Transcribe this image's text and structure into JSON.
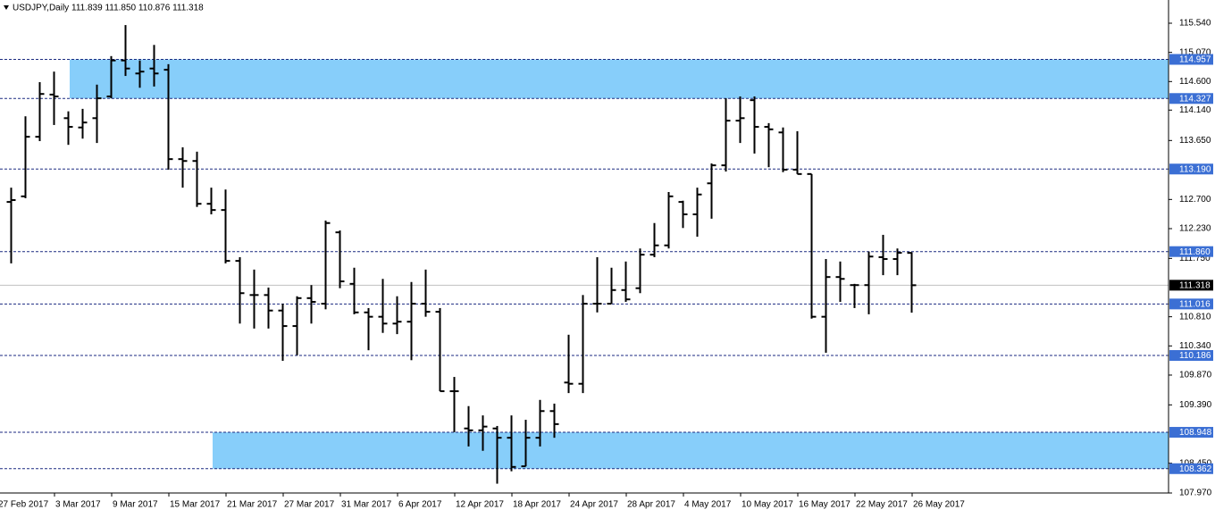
{
  "chart_data": {
    "type": "ohlc",
    "title": "USDJPY,Daily",
    "subtitle": "111.839 111.850 110.876 111.318",
    "categories": [
      "27 Feb 2017",
      null,
      null,
      null,
      "3 Mar 2017",
      null,
      null,
      null,
      "9 Mar 2017",
      null,
      null,
      null,
      "15 Mar 2017",
      null,
      null,
      null,
      "21 Mar 2017",
      null,
      null,
      null,
      "27 Mar 2017",
      null,
      null,
      null,
      "31 Mar 2017",
      null,
      null,
      null,
      "6 Apr 2017",
      null,
      null,
      null,
      "12 Apr 2017",
      null,
      null,
      null,
      "18 Apr 2017",
      null,
      null,
      null,
      "24 Apr 2017",
      null,
      null,
      null,
      "28 Apr 2017",
      null,
      null,
      null,
      "4 May 2017",
      null,
      null,
      null,
      "10 May 2017",
      null,
      null,
      null,
      "16 May 2017",
      null,
      null,
      null,
      "22 May 2017",
      null,
      null,
      null,
      "26 May 2017"
    ],
    "open": [
      null,
      112.66,
      112.75,
      113.71,
      114.39,
      114.01,
      113.86,
      114.01,
      114.36,
      114.94,
      114.73,
      114.81,
      114.79,
      113.35,
      113.32,
      112.63,
      112.53,
      111.71,
      111.16,
      111.16,
      110.91,
      110.66,
      111.11,
      111.02,
      112.17,
      111.34,
      110.88,
      110.81,
      110.7,
      110.73,
      111.02,
      110.89,
      109.61,
      109.01,
      108.98,
      109.01,
      108.86,
      108.4,
      108.86,
      109.29,
      109.75,
      109.73,
      111.02,
      111.02,
      111.24,
      111.27,
      111.81,
      111.96,
      112.66,
      112.46,
      112.96,
      113.25,
      113.97,
      114.3,
      113.87,
      113.78,
      113.18,
      113.11,
      110.81,
      111.45,
      111.32,
      111.32,
      111.77,
      111.74,
      111.839
    ],
    "high": [
      null,
      112.89,
      114.04,
      114.59,
      114.76,
      114.12,
      114.16,
      114.55,
      115.01,
      115.51,
      114.94,
      115.19,
      114.88,
      113.54,
      113.47,
      112.89,
      112.86,
      111.77,
      111.57,
      111.28,
      111.02,
      111.14,
      111.32,
      112.36,
      112.2,
      111.6,
      110.95,
      111.42,
      111.14,
      111.37,
      111.57,
      110.95,
      109.84,
      109.37,
      109.22,
      109.05,
      109.22,
      109.15,
      109.47,
      109.41,
      110.52,
      111.16,
      111.77,
      111.6,
      111.7,
      111.91,
      112.32,
      112.82,
      112.68,
      112.89,
      113.28,
      114.33,
      114.36,
      114.36,
      113.93,
      113.86,
      113.8,
      113.11,
      111.74,
      111.7,
      111.34,
      111.86,
      112.13,
      111.91,
      111.85
    ],
    "low": [
      null,
      111.67,
      112.72,
      113.64,
      113.9,
      113.58,
      113.68,
      113.61,
      114.33,
      114.69,
      114.5,
      114.52,
      113.18,
      112.89,
      112.58,
      112.46,
      111.67,
      110.7,
      110.62,
      110.62,
      110.1,
      110.19,
      110.7,
      110.93,
      111.27,
      110.85,
      110.27,
      110.55,
      110.53,
      110.11,
      110.81,
      109.61,
      108.95,
      108.72,
      108.65,
      108.12,
      108.32,
      108.4,
      108.72,
      108.86,
      109.58,
      109.58,
      110.88,
      111.02,
      111.05,
      111.19,
      111.77,
      111.91,
      112.24,
      112.1,
      112.39,
      113.15,
      113.61,
      113.44,
      113.22,
      113.14,
      113.11,
      110.78,
      110.23,
      111.05,
      110.95,
      110.85,
      111.48,
      111.48,
      110.876
    ],
    "close": [
      null,
      112.69,
      113.71,
      114.4,
      114.36,
      113.87,
      113.94,
      114.33,
      114.94,
      114.81,
      114.76,
      114.73,
      113.35,
      113.32,
      112.63,
      112.53,
      111.71,
      111.19,
      111.16,
      110.91,
      110.66,
      111.11,
      111.05,
      112.32,
      111.38,
      110.88,
      110.81,
      110.7,
      110.73,
      111.02,
      110.89,
      109.61,
      109.61,
      108.98,
      109.04,
      108.86,
      108.39,
      108.86,
      109.29,
      109.08,
      109.73,
      111.02,
      111.02,
      111.24,
      111.09,
      111.81,
      111.96,
      112.75,
      112.46,
      112.78,
      113.25,
      113.97,
      114.01,
      113.87,
      113.83,
      113.18,
      113.11,
      110.81,
      111.45,
      111.42,
      111.32,
      111.78,
      111.74,
      111.84,
      111.318
    ],
    "color": "#000000",
    "ylim": [
      107.97,
      115.914
    ],
    "yticks": [
      {
        "value": 115.54,
        "label": "115.540"
      },
      {
        "value": 115.07,
        "label": "115.070"
      },
      {
        "value": 114.6,
        "label": "114.600"
      },
      {
        "value": 114.14,
        "label": "114.140"
      },
      {
        "value": 113.65,
        "label": "113.650"
      },
      {
        "value": 112.7,
        "label": "112.700"
      },
      {
        "value": 112.23,
        "label": "112.230"
      },
      {
        "value": 111.75,
        "label": "111.750"
      },
      {
        "value": 110.81,
        "label": "110.810"
      },
      {
        "value": 110.34,
        "label": "110.340"
      },
      {
        "value": 109.87,
        "label": "109.870"
      },
      {
        "value": 109.39,
        "label": "109.390"
      },
      {
        "value": 108.45,
        "label": "108.450"
      },
      {
        "value": 107.97,
        "label": "107.970"
      }
    ],
    "levels": [
      114.957,
      114.327,
      {
        "value": 113.19,
        "label": "113.190"
      },
      {
        "value": 111.86,
        "label": "111.860"
      },
      111.016,
      110.186,
      108.948,
      108.362
    ],
    "level_color": "#1b2a80",
    "level_label_color": "#3b6fd4",
    "zone_color": "#87cefa",
    "current_price": 111.318,
    "current_price_color": "#c0c0c0"
  }
}
